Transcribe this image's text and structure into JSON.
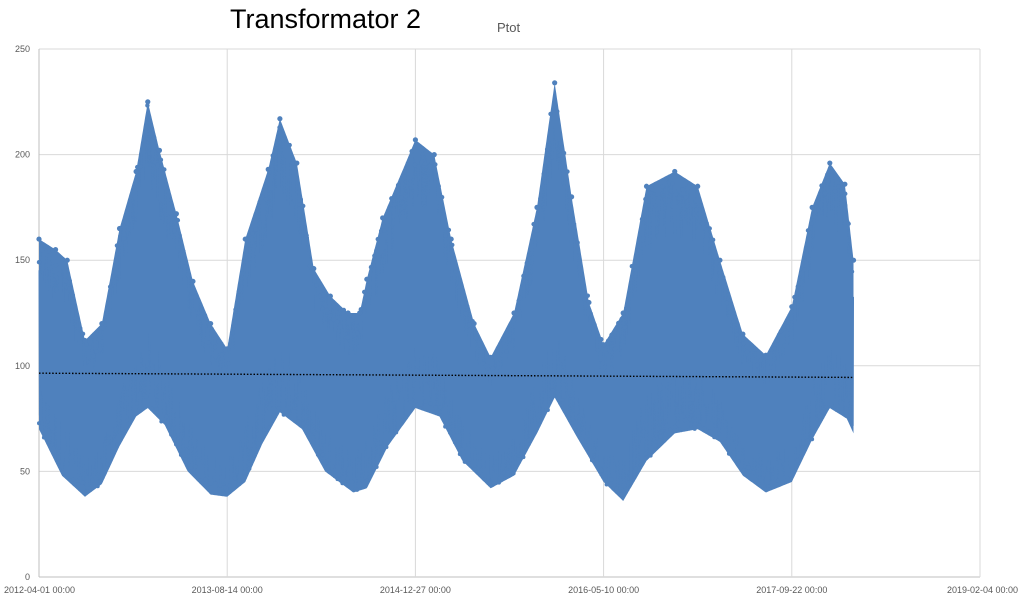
{
  "chart_data": {
    "type": "line",
    "title": "Transformator 2",
    "subtitle": "Ptot",
    "xlabel": "",
    "ylabel": "",
    "ylim": [
      0,
      250
    ],
    "y_ticks": [
      "0",
      "50",
      "100",
      "150",
      "200",
      "250"
    ],
    "x_ticks": [
      "2012-04-01 00:00",
      "2013-08-14 00:00",
      "2014-12-27 00:00",
      "2016-05-10 00:00",
      "2017-09-22 00:00",
      "2019-02-04 00:00"
    ],
    "xlim": [
      "2012-04-01",
      "2019-02-04"
    ],
    "grid": true,
    "legend": "none",
    "colors": {
      "series": "#4f81bd",
      "trend": "#000000",
      "grid": "#d9d9d9"
    },
    "series": [
      {
        "name": "",
        "style": "line-with-markers",
        "upper_envelope": [
          {
            "x": "2012-04-01",
            "y": 160
          },
          {
            "x": "2012-05-15",
            "y": 155
          },
          {
            "x": "2012-06-15",
            "y": 150
          },
          {
            "x": "2012-08-01",
            "y": 112
          },
          {
            "x": "2012-09-15",
            "y": 120
          },
          {
            "x": "2012-11-01",
            "y": 165
          },
          {
            "x": "2012-12-15",
            "y": 192
          },
          {
            "x": "2013-01-15",
            "y": 225
          },
          {
            "x": "2013-02-15",
            "y": 202
          },
          {
            "x": "2013-04-01",
            "y": 172
          },
          {
            "x": "2013-05-15",
            "y": 140
          },
          {
            "x": "2013-07-01",
            "y": 120
          },
          {
            "x": "2013-08-14",
            "y": 108
          },
          {
            "x": "2013-10-01",
            "y": 160
          },
          {
            "x": "2013-12-01",
            "y": 193
          },
          {
            "x": "2014-01-01",
            "y": 217
          },
          {
            "x": "2014-02-15",
            "y": 196
          },
          {
            "x": "2014-04-01",
            "y": 146
          },
          {
            "x": "2014-05-15",
            "y": 133
          },
          {
            "x": "2014-07-01",
            "y": 125
          },
          {
            "x": "2014-08-01",
            "y": 125
          },
          {
            "x": "2014-08-20",
            "y": 141
          },
          {
            "x": "2014-10-01",
            "y": 170
          },
          {
            "x": "2014-12-27",
            "y": 207
          },
          {
            "x": "2015-02-15",
            "y": 200
          },
          {
            "x": "2015-04-01",
            "y": 160
          },
          {
            "x": "2015-06-01",
            "y": 120
          },
          {
            "x": "2015-07-15",
            "y": 104
          },
          {
            "x": "2015-09-15",
            "y": 125
          },
          {
            "x": "2015-11-15",
            "y": 175
          },
          {
            "x": "2016-01-01",
            "y": 234
          },
          {
            "x": "2016-02-15",
            "y": 180
          },
          {
            "x": "2016-04-01",
            "y": 130
          },
          {
            "x": "2016-05-10",
            "y": 110
          },
          {
            "x": "2016-07-01",
            "y": 125
          },
          {
            "x": "2016-09-01",
            "y": 185
          },
          {
            "x": "2016-11-15",
            "y": 192
          },
          {
            "x": "2017-01-15",
            "y": 185
          },
          {
            "x": "2017-03-15",
            "y": 150
          },
          {
            "x": "2017-05-15",
            "y": 115
          },
          {
            "x": "2017-07-15",
            "y": 105
          },
          {
            "x": "2017-09-22",
            "y": 128
          },
          {
            "x": "2017-11-15",
            "y": 175
          },
          {
            "x": "2018-01-01",
            "y": 196
          },
          {
            "x": "2018-02-10",
            "y": 186
          },
          {
            "x": "2018-03-05",
            "y": 150
          }
        ],
        "lower_envelope": [
          {
            "x": "2012-04-01",
            "y": 70
          },
          {
            "x": "2012-06-01",
            "y": 48
          },
          {
            "x": "2012-08-01",
            "y": 38
          },
          {
            "x": "2012-09-15",
            "y": 44
          },
          {
            "x": "2012-11-01",
            "y": 62
          },
          {
            "x": "2012-12-15",
            "y": 76
          },
          {
            "x": "2013-01-15",
            "y": 80
          },
          {
            "x": "2013-03-01",
            "y": 72
          },
          {
            "x": "2013-05-01",
            "y": 50
          },
          {
            "x": "2013-07-01",
            "y": 39
          },
          {
            "x": "2013-08-14",
            "y": 38
          },
          {
            "x": "2013-10-01",
            "y": 45
          },
          {
            "x": "2013-11-15",
            "y": 63
          },
          {
            "x": "2014-01-01",
            "y": 78
          },
          {
            "x": "2014-03-01",
            "y": 70
          },
          {
            "x": "2014-05-01",
            "y": 50
          },
          {
            "x": "2014-07-15",
            "y": 40
          },
          {
            "x": "2014-08-20",
            "y": 42
          },
          {
            "x": "2014-10-15",
            "y": 62
          },
          {
            "x": "2014-12-27",
            "y": 80
          },
          {
            "x": "2015-03-01",
            "y": 76
          },
          {
            "x": "2015-05-01",
            "y": 55
          },
          {
            "x": "2015-07-15",
            "y": 42
          },
          {
            "x": "2015-09-15",
            "y": 48
          },
          {
            "x": "2015-11-15",
            "y": 68
          },
          {
            "x": "2016-01-01",
            "y": 85
          },
          {
            "x": "2016-03-01",
            "y": 66
          },
          {
            "x": "2016-05-10",
            "y": 45
          },
          {
            "x": "2016-07-01",
            "y": 36
          },
          {
            "x": "2016-09-01",
            "y": 55
          },
          {
            "x": "2016-11-15",
            "y": 68
          },
          {
            "x": "2017-01-15",
            "y": 70
          },
          {
            "x": "2017-03-15",
            "y": 64
          },
          {
            "x": "2017-05-15",
            "y": 48
          },
          {
            "x": "2017-07-15",
            "y": 40
          },
          {
            "x": "2017-09-22",
            "y": 45
          },
          {
            "x": "2017-11-15",
            "y": 65
          },
          {
            "x": "2018-01-01",
            "y": 80
          },
          {
            "x": "2018-02-15",
            "y": 75
          },
          {
            "x": "2018-03-05",
            "y": 68
          }
        ]
      }
    ],
    "trendline": {
      "style": "dotted",
      "points": [
        {
          "x": "2012-04-01",
          "y": 96.5
        },
        {
          "x": "2018-03-05",
          "y": 94.5
        }
      ]
    }
  }
}
